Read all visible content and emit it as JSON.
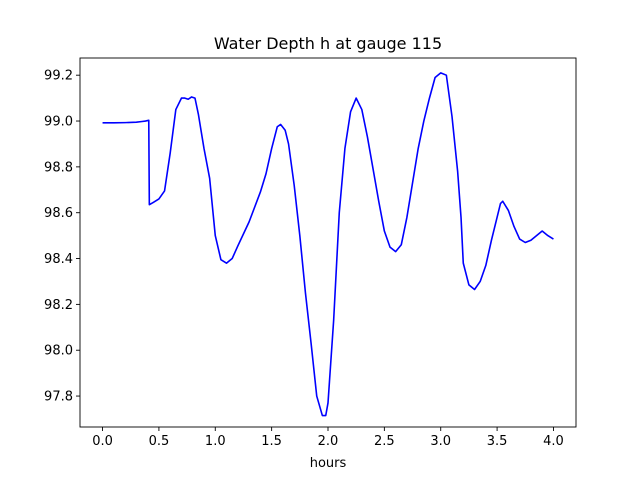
{
  "chart_data": {
    "type": "line",
    "title": "Water Depth h at gauge 115",
    "xlabel": "hours",
    "ylabel": "",
    "xlim": [
      -0.2,
      4.2
    ],
    "ylim": [
      97.665,
      99.275
    ],
    "xticks": [
      0.0,
      0.5,
      1.0,
      1.5,
      2.0,
      2.5,
      3.0,
      3.5,
      4.0
    ],
    "xtick_labels": [
      "0.0",
      "0.5",
      "1.0",
      "1.5",
      "2.0",
      "2.5",
      "3.0",
      "3.5",
      "4.0"
    ],
    "yticks": [
      97.8,
      98.0,
      98.2,
      98.4,
      98.6,
      98.8,
      99.0,
      99.2
    ],
    "ytick_labels": [
      "97.8",
      "98.0",
      "98.2",
      "98.4",
      "98.6",
      "98.8",
      "99.0",
      "99.2"
    ],
    "grid": false,
    "series": [
      {
        "name": "",
        "color": "#0000ff",
        "x": [
          0.0,
          0.1,
          0.2,
          0.3,
          0.35,
          0.38,
          0.41,
          0.415,
          0.45,
          0.5,
          0.55,
          0.6,
          0.65,
          0.7,
          0.73,
          0.76,
          0.79,
          0.82,
          0.85,
          0.9,
          0.95,
          1.0,
          1.05,
          1.1,
          1.15,
          1.2,
          1.3,
          1.4,
          1.45,
          1.5,
          1.55,
          1.58,
          1.62,
          1.65,
          1.7,
          1.75,
          1.8,
          1.85,
          1.9,
          1.95,
          1.98,
          2.0,
          2.05,
          2.1,
          2.15,
          2.2,
          2.25,
          2.3,
          2.35,
          2.4,
          2.45,
          2.5,
          2.55,
          2.6,
          2.65,
          2.7,
          2.75,
          2.8,
          2.85,
          2.9,
          2.95,
          3.0,
          3.05,
          3.1,
          3.15,
          3.18,
          3.2,
          3.25,
          3.3,
          3.35,
          3.4,
          3.45,
          3.5,
          3.53,
          3.55,
          3.6,
          3.65,
          3.7,
          3.75,
          3.8,
          3.85,
          3.9,
          3.95,
          4.0
        ],
        "y": [
          98.992,
          98.992,
          98.993,
          98.995,
          98.998,
          99.0,
          99.003,
          98.635,
          98.645,
          98.66,
          98.695,
          98.86,
          99.05,
          99.1,
          99.1,
          99.095,
          99.105,
          99.1,
          99.03,
          98.88,
          98.75,
          98.5,
          98.395,
          98.38,
          98.4,
          98.455,
          98.56,
          98.69,
          98.77,
          98.88,
          98.975,
          98.985,
          98.96,
          98.9,
          98.72,
          98.5,
          98.25,
          98.03,
          97.8,
          97.715,
          97.715,
          97.77,
          98.13,
          98.6,
          98.88,
          99.04,
          99.1,
          99.05,
          98.93,
          98.79,
          98.65,
          98.52,
          98.45,
          98.43,
          98.46,
          98.58,
          98.73,
          98.88,
          99.0,
          99.1,
          99.19,
          99.21,
          99.2,
          99.02,
          98.78,
          98.58,
          98.38,
          98.285,
          98.265,
          98.3,
          98.37,
          98.48,
          98.58,
          98.64,
          98.65,
          98.61,
          98.54,
          98.485,
          98.47,
          98.48,
          98.5,
          98.52,
          98.5,
          98.485
        ]
      }
    ]
  }
}
